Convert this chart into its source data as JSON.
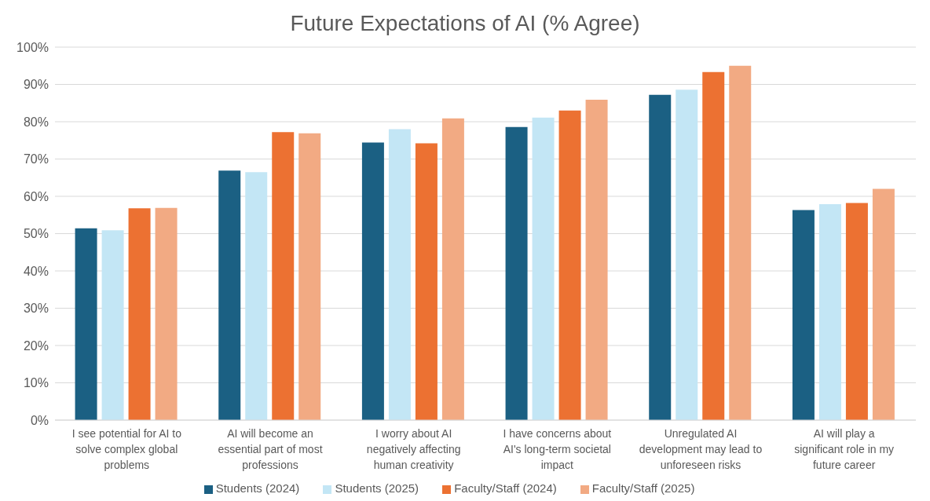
{
  "chart_data": {
    "type": "bar",
    "title": "Future Expectations of AI (% Agree)",
    "categories": [
      "I see potential for AI to solve complex global problems",
      "AI will become an essential part of most professions",
      "I worry about AI negatively affecting human creativity",
      "I have concerns about AI's long-term societal impact",
      "Unregulated AI development may lead to unforeseen risks",
      "AI will play a significant role in my future career"
    ],
    "series": [
      {
        "name": "Students (2024)",
        "color": "#1b6083",
        "values": [
          51.4,
          66.9,
          74.4,
          78.6,
          87.2,
          56.3
        ]
      },
      {
        "name": "Students (2025)",
        "color": "#c3e6f5",
        "values": [
          50.9,
          66.5,
          78.0,
          81.1,
          88.6,
          57.9
        ]
      },
      {
        "name": "Faculty/Staff (2024)",
        "color": "#ec7132",
        "values": [
          56.8,
          77.2,
          74.2,
          83.0,
          93.3,
          58.2
        ]
      },
      {
        "name": "Faculty/Staff (2025)",
        "color": "#f2aa83",
        "values": [
          56.9,
          76.9,
          80.9,
          85.9,
          95.0,
          62.0
        ]
      }
    ],
    "ylim": [
      0,
      100
    ],
    "yticks": [
      {
        "value": 0,
        "label": "0%"
      },
      {
        "value": 10,
        "label": "10%"
      },
      {
        "value": 20,
        "label": "20%"
      },
      {
        "value": 30,
        "label": "30%"
      },
      {
        "value": 40,
        "label": "40%"
      },
      {
        "value": 50,
        "label": "50%"
      },
      {
        "value": 60,
        "label": "60%"
      },
      {
        "value": 70,
        "label": "70%"
      },
      {
        "value": 80,
        "label": "80%"
      },
      {
        "value": 90,
        "label": "90%"
      },
      {
        "value": 100,
        "label": "100%"
      }
    ],
    "grid": "y",
    "legend": "bottom"
  }
}
